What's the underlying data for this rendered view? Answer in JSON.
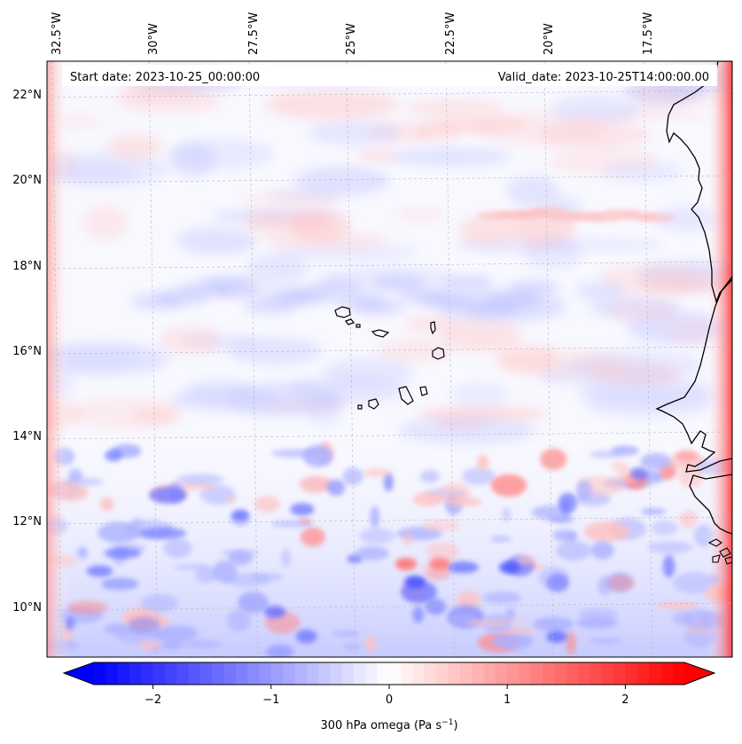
{
  "map": {
    "header": {
      "start_label": "Start date: 2023-10-25_00:00:00",
      "valid_label": "Valid_date: 2023-10-25T14:00:00.00"
    },
    "longitude_labels": [
      "32.5°W",
      "30°W",
      "27.5°W",
      "25°W",
      "22.5°W",
      "20°W",
      "17.5°W"
    ],
    "latitude_labels": [
      "22°N",
      "20°N",
      "18°N",
      "16°N",
      "14°N",
      "12°N",
      "10°N"
    ],
    "extent": {
      "lon_min": -33.0,
      "lon_max": -15.5,
      "lat_min": 8.9,
      "lat_max": 22.7
    },
    "gridlines": true,
    "coastline_color": "#000000",
    "features": [
      "Cape Verde islands",
      "West African coastline (Senegal / Gambia / Guinea-Bissau)"
    ]
  },
  "colorbar": {
    "label_main": "300 hPa omega (Pa s",
    "label_sup": "−1",
    "label_end": ")",
    "ticks": [
      "−2",
      "−1",
      "0",
      "1",
      "2"
    ],
    "tick_values": [
      -2,
      -1,
      0,
      1,
      2
    ],
    "range": [
      -2.5,
      2.5
    ],
    "colormap": "bwr",
    "color_low": "#0000ff",
    "color_mid": "#ffffff",
    "color_high": "#ff0000",
    "extend": "both"
  }
}
